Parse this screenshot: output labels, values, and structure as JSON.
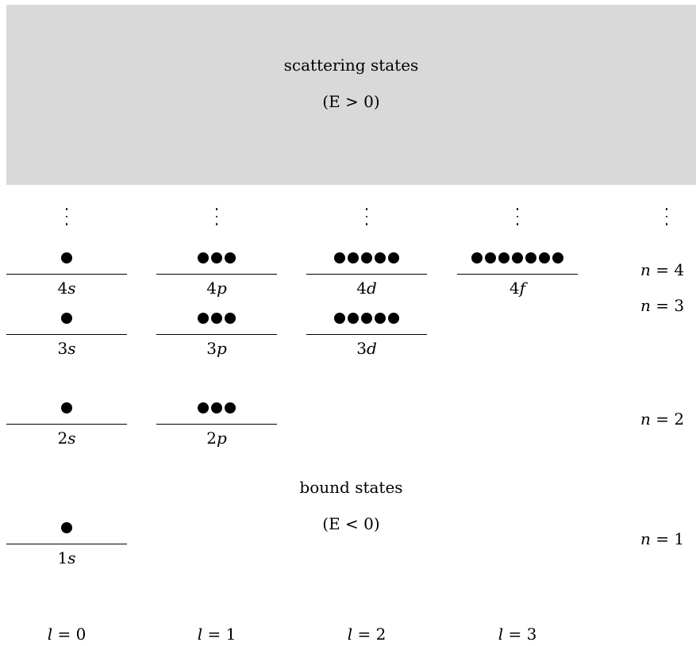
{
  "scattering": {
    "title": "scattering states",
    "condition": "(E > 0)"
  },
  "bound": {
    "title": "bound states",
    "condition": "(E < 0)"
  },
  "orbitals": [
    {
      "n": 4,
      "l": 0,
      "label": "4s",
      "electrons": 1
    },
    {
      "n": 4,
      "l": 1,
      "label": "4p",
      "electrons": 3
    },
    {
      "n": 4,
      "l": 2,
      "label": "4d",
      "electrons": 5
    },
    {
      "n": 4,
      "l": 3,
      "label": "4f",
      "electrons": 7
    },
    {
      "n": 3,
      "l": 0,
      "label": "3s",
      "electrons": 1
    },
    {
      "n": 3,
      "l": 1,
      "label": "3p",
      "electrons": 3
    },
    {
      "n": 3,
      "l": 2,
      "label": "3d",
      "electrons": 5
    },
    {
      "n": 2,
      "l": 0,
      "label": "2s",
      "electrons": 1
    },
    {
      "n": 2,
      "l": 1,
      "label": "2p",
      "electrons": 3
    },
    {
      "n": 1,
      "l": 0,
      "label": "1s",
      "electrons": 1
    }
  ],
  "n_labels": [
    "n = 4",
    "n = 3",
    "n = 2",
    "n = 1"
  ],
  "l_labels": [
    "l = 0",
    "l = 1",
    "l = 2",
    "l = 3"
  ],
  "colors": {
    "scattering_region": "#d9d9d9",
    "ink": "#000000"
  }
}
